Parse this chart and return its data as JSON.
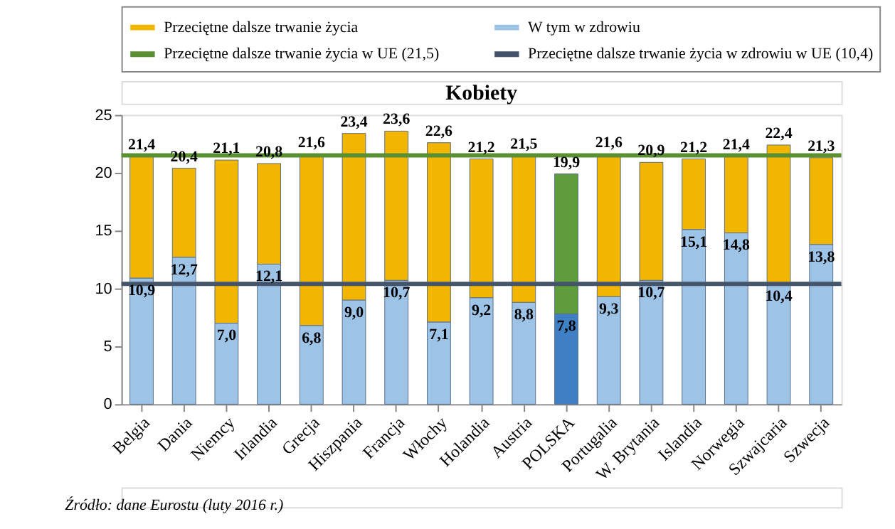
{
  "chart_data": {
    "type": "bar",
    "title": "Kobiety",
    "stacked": true,
    "categories": [
      "Belgia",
      "Dania",
      "Niemcy",
      "Irlandia",
      "Grecja",
      "Hiszpania",
      "Francja",
      "Włochy",
      "Holandia",
      "Austria",
      "POLSKA",
      "Portugalia",
      "W. Brytania",
      "Islandia",
      "Norwegia",
      "Szwajcaria",
      "Szwecja"
    ],
    "series": [
      {
        "name": "W tym w zdrowiu",
        "color": "#9dc3e6",
        "colors": [
          "#9dc3e6",
          "#9dc3e6",
          "#9dc3e6",
          "#9dc3e6",
          "#9dc3e6",
          "#9dc3e6",
          "#9dc3e6",
          "#9dc3e6",
          "#9dc3e6",
          "#9dc3e6",
          "#3f7fc4",
          "#9dc3e6",
          "#9dc3e6",
          "#9dc3e6",
          "#9dc3e6",
          "#9dc3e6",
          "#9dc3e6"
        ],
        "values": [
          10.9,
          12.7,
          7.0,
          12.1,
          6.8,
          9.0,
          10.7,
          7.1,
          9.2,
          8.8,
          7.8,
          9.3,
          10.7,
          15.1,
          14.8,
          10.4,
          13.8
        ],
        "value_labels": [
          "10,9",
          "12,7",
          "7,0",
          "12,1",
          "6,8",
          "9,0",
          "10,7",
          "7,1",
          "9,2",
          "8,8",
          "7,8",
          "9,3",
          "10,7",
          "15,1",
          "14,8",
          "10,4",
          "13,8"
        ]
      },
      {
        "name": "Przeciętne dalsze trwanie życia",
        "color": "#f2b500",
        "colors": [
          "#f2b500",
          "#f2b500",
          "#f2b500",
          "#f2b500",
          "#f2b500",
          "#f2b500",
          "#f2b500",
          "#f2b500",
          "#f2b500",
          "#f2b500",
          "#5e9c3c",
          "#f2b500",
          "#f2b500",
          "#f2b500",
          "#f2b500",
          "#f2b500",
          "#f2b500"
        ],
        "values": [
          10.5,
          7.7,
          14.1,
          8.7,
          14.8,
          14.4,
          12.9,
          15.5,
          12.0,
          12.7,
          12.1,
          12.3,
          10.2,
          6.1,
          6.6,
          12.0,
          7.5
        ]
      }
    ],
    "totals": [
      "21,4",
      "20,4",
      "21,1",
      "20,8",
      "21,6",
      "23,4",
      "23,6",
      "22,6",
      "21,2",
      "21,5",
      "19,9",
      "21,6",
      "20,9",
      "21,2",
      "21,4",
      "22,4",
      "21,3"
    ],
    "ref_lines": [
      {
        "axis": "y",
        "value": 21.5,
        "label": "Przeciętne dalsze trwanie życia w UE (21,5)",
        "color": "#5a8f32"
      },
      {
        "axis": "y",
        "value": 10.4,
        "label": "Przeciętne dalsze trwanie życia w zdrowiu w UE (10,4)",
        "color": "#44546a"
      }
    ],
    "ylim": [
      0,
      25
    ],
    "yticks": [
      0,
      5,
      10,
      15,
      20,
      25
    ],
    "grid": false,
    "legend": "top",
    "annotations": [
      "Źródło: dane Eurostu (luty 2016 r.)"
    ]
  }
}
